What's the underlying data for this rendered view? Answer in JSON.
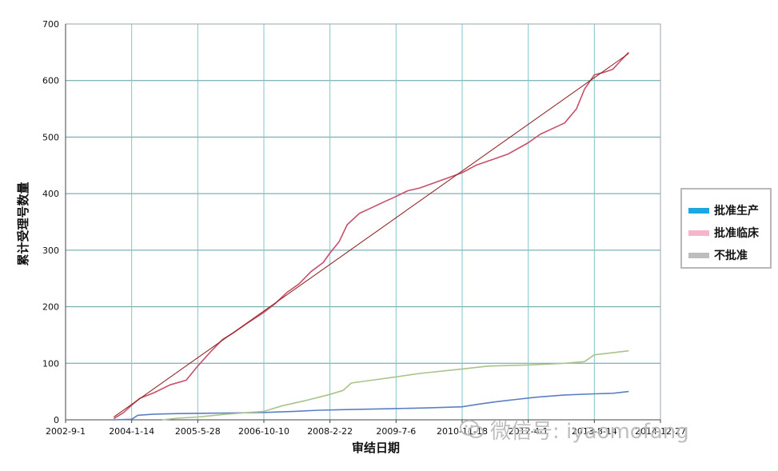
{
  "chart_data": {
    "type": "line",
    "xlabel": "审结日期",
    "ylabel": "累计受理号数量",
    "ylim": [
      0,
      700
    ],
    "xlim": [
      "2002-9-1",
      "2014-12-27"
    ],
    "yticks": [
      0,
      100,
      200,
      300,
      400,
      500,
      600,
      700
    ],
    "xticks": [
      "2002-9-1",
      "2004-1-14",
      "2005-5-28",
      "2006-10-10",
      "2008-2-22",
      "2009-7-6",
      "2010-11-18",
      "2012-4-1",
      "2013-8-14",
      "2014-12-27"
    ],
    "xtick_labels": [
      "2002-9-1",
      "2004-1-14",
      "2005-5-28",
      "2006-10-10",
      "2008-2-22",
      "2009-7-6",
      "2010-11-18",
      "2012-4-1",
      "2013-8-14",
      "2014-12-27"
    ],
    "grid": true,
    "legend_position": "right",
    "series": [
      {
        "name": "批准生产",
        "legend_color": "#1ba8e0",
        "line_color": "#5b7fc4",
        "points": [
          [
            "2003-9-1",
            0
          ],
          [
            "2004-1-14",
            1
          ],
          [
            "2004-3-1",
            8
          ],
          [
            "2004-7-1",
            10
          ],
          [
            "2005-1-1",
            11
          ],
          [
            "2006-1-1",
            12
          ],
          [
            "2006-10-10",
            13
          ],
          [
            "2007-6-1",
            15
          ],
          [
            "2007-12-1",
            17
          ],
          [
            "2008-6-1",
            18
          ],
          [
            "2009-1-1",
            19
          ],
          [
            "2009-7-6",
            20
          ],
          [
            "2010-3-1",
            21
          ],
          [
            "2010-11-18",
            23
          ],
          [
            "2011-4-1",
            28
          ],
          [
            "2011-8-1",
            32
          ],
          [
            "2012-1-1",
            36
          ],
          [
            "2012-6-1",
            40
          ],
          [
            "2013-1-1",
            44
          ],
          [
            "2013-8-14",
            46
          ],
          [
            "2014-1-1",
            47
          ],
          [
            "2014-5-1",
            50
          ]
        ]
      },
      {
        "name": "批准临床",
        "legend_color": "#f5b6cb",
        "line_color": "#c84f6a",
        "points": [
          [
            "2003-9-1",
            2
          ],
          [
            "2003-11-15",
            13
          ],
          [
            "2004-1-14",
            26
          ],
          [
            "2004-3-15",
            38
          ],
          [
            "2004-7-1",
            48
          ],
          [
            "2004-11-1",
            62
          ],
          [
            "2005-3-1",
            70
          ],
          [
            "2005-5-28",
            95
          ],
          [
            "2005-9-1",
            120
          ],
          [
            "2005-12-1",
            142
          ],
          [
            "2006-3-1",
            155
          ],
          [
            "2006-6-1",
            170
          ],
          [
            "2006-10-10",
            190
          ],
          [
            "2007-1-1",
            205
          ],
          [
            "2007-4-1",
            225
          ],
          [
            "2007-7-1",
            240
          ],
          [
            "2007-10-1",
            262
          ],
          [
            "2008-1-1",
            278
          ],
          [
            "2008-2-22",
            295
          ],
          [
            "2008-5-1",
            315
          ],
          [
            "2008-7-1",
            345
          ],
          [
            "2008-10-1",
            365
          ],
          [
            "2009-1-1",
            375
          ],
          [
            "2009-4-1",
            385
          ],
          [
            "2009-7-6",
            395
          ],
          [
            "2009-10-1",
            405
          ],
          [
            "2010-1-1",
            410
          ],
          [
            "2010-5-1",
            420
          ],
          [
            "2010-11-18",
            437
          ],
          [
            "2011-3-1",
            450
          ],
          [
            "2011-7-1",
            460
          ],
          [
            "2011-11-1",
            470
          ],
          [
            "2012-4-1",
            490
          ],
          [
            "2012-7-1",
            505
          ],
          [
            "2012-10-1",
            515
          ],
          [
            "2013-1-1",
            525
          ],
          [
            "2013-4-1",
            550
          ],
          [
            "2013-6-1",
            585
          ],
          [
            "2013-8-14",
            610
          ],
          [
            "2013-11-1",
            615
          ],
          [
            "2014-1-1",
            620
          ],
          [
            "2014-3-1",
            635
          ],
          [
            "2014-5-1",
            650
          ]
        ]
      },
      {
        "name": "不批准",
        "legend_color": "#bdbdbd",
        "line_color": "#a8c48a",
        "points": [
          [
            "2004-9-1",
            0
          ],
          [
            "2005-1-1",
            3
          ],
          [
            "2005-5-28",
            5
          ],
          [
            "2006-1-1",
            10
          ],
          [
            "2006-10-10",
            15
          ],
          [
            "2007-3-1",
            25
          ],
          [
            "2007-8-1",
            33
          ],
          [
            "2008-2-22",
            45
          ],
          [
            "2008-6-1",
            52
          ],
          [
            "2008-8-1",
            65
          ],
          [
            "2009-1-1",
            70
          ],
          [
            "2009-7-6",
            76
          ],
          [
            "2010-1-1",
            82
          ],
          [
            "2010-11-18",
            90
          ],
          [
            "2011-6-1",
            95
          ],
          [
            "2012-4-1",
            97
          ],
          [
            "2013-1-1",
            100
          ],
          [
            "2013-6-1",
            103
          ],
          [
            "2013-8-14",
            115
          ],
          [
            "2014-5-1",
            122
          ]
        ]
      }
    ],
    "trendline": {
      "color": "#8b1a1a",
      "points": [
        [
          "2003-9-1",
          5
        ],
        [
          "2014-5-1",
          648
        ]
      ]
    }
  },
  "watermark": {
    "text": "微信号: iyaomofang"
  }
}
